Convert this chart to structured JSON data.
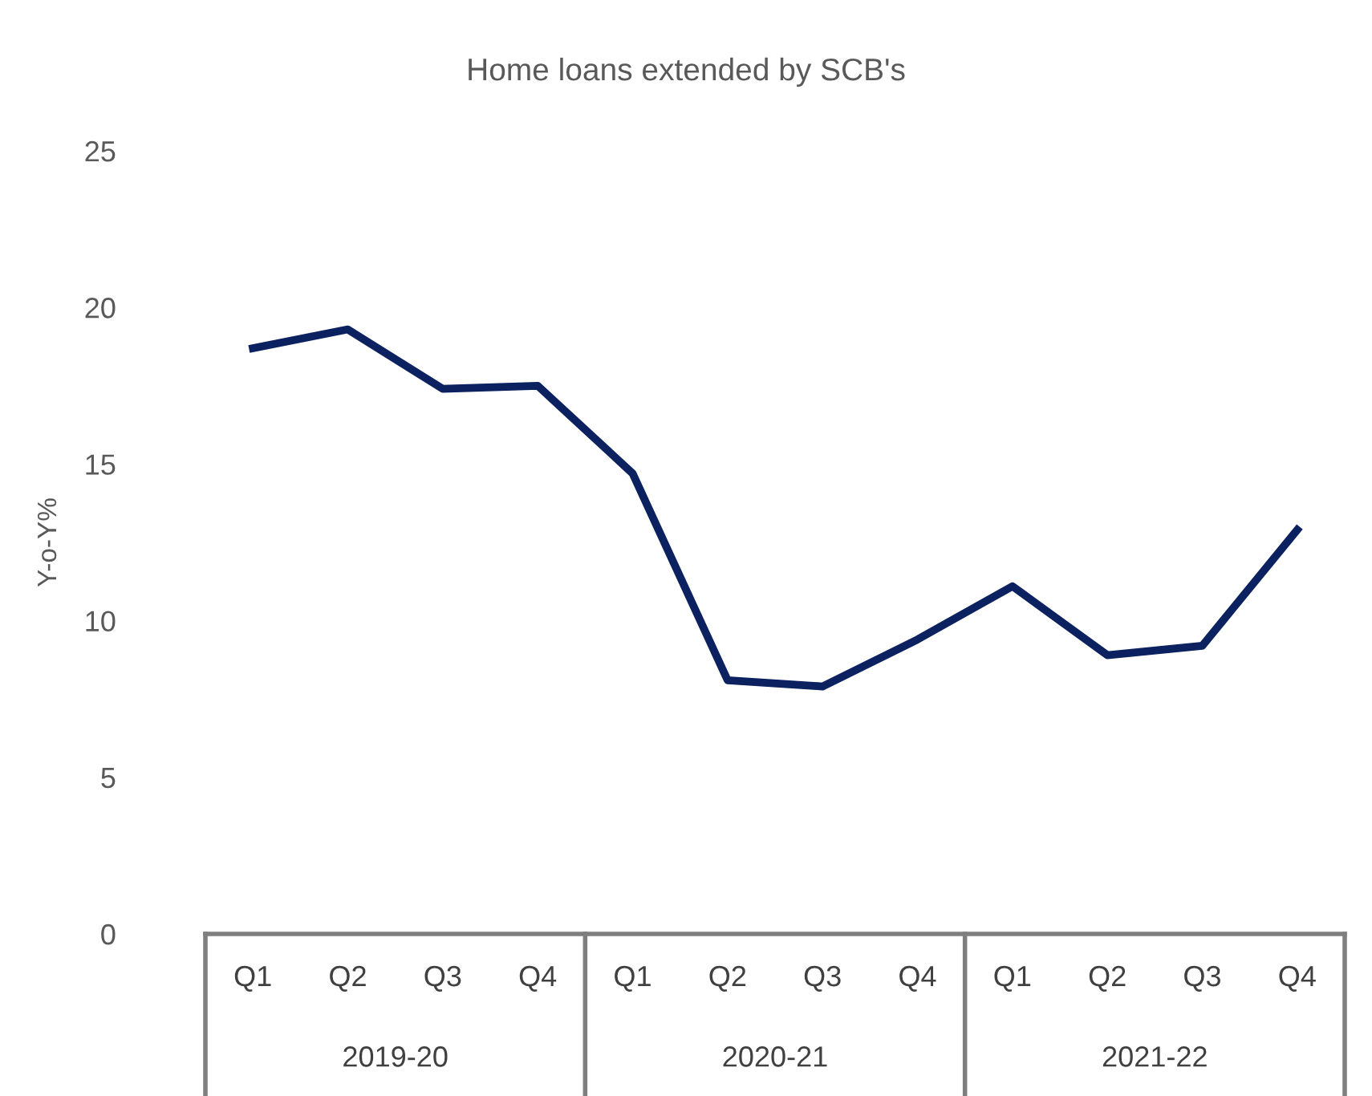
{
  "chart_data": {
    "type": "line",
    "title": "Home loans extended by SCB's",
    "ylabel": "Y-o-Y%",
    "categories": [
      "Q1",
      "Q2",
      "Q3",
      "Q4",
      "Q1",
      "Q2",
      "Q3",
      "Q4",
      "Q1",
      "Q2",
      "Q3",
      "Q4"
    ],
    "series": [
      {
        "color": "#0b2160",
        "values": [
          18.7,
          19.3,
          17.4,
          17.5,
          14.7,
          8.1,
          7.9,
          9.4,
          11.1,
          8.9,
          9.2,
          12.9
        ]
      }
    ],
    "annotations": [
      "2019-20",
      "2020-21",
      "2021-22"
    ],
    "ylim": [
      0,
      25
    ],
    "yticks": [
      0,
      5,
      10,
      15,
      20,
      25
    ],
    "grid": false,
    "legend": false,
    "marker": "none",
    "line_style": "solid"
  }
}
